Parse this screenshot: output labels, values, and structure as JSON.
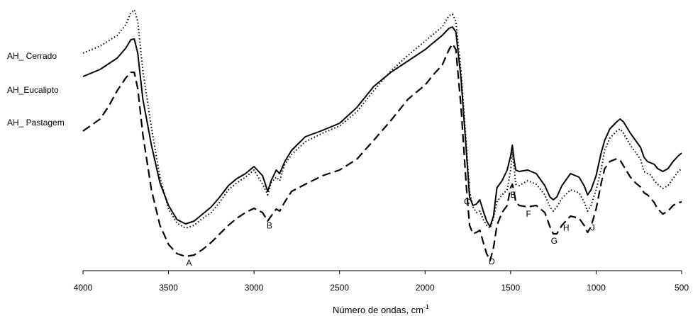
{
  "chart_data": {
    "type": "line",
    "title": "",
    "xlabel": "Número de ondas, cm",
    "xlabel_superscript": "-1",
    "ylabel": "",
    "xlim": [
      4000,
      500
    ],
    "x_ticks": [
      4000,
      3500,
      3000,
      2500,
      2000,
      1500,
      1000,
      500
    ],
    "grid": false,
    "legend": "inline-left",
    "series": [
      {
        "name": "AH_ Cerrado",
        "style": "dotted",
        "color": "#000000",
        "points": [
          [
            4000,
            75
          ],
          [
            3900,
            65
          ],
          [
            3800,
            50
          ],
          [
            3750,
            35
          ],
          [
            3720,
            18
          ],
          [
            3700,
            14
          ],
          [
            3680,
            30
          ],
          [
            3650,
            100
          ],
          [
            3600,
            180
          ],
          [
            3550,
            250
          ],
          [
            3500,
            295
          ],
          [
            3450,
            315
          ],
          [
            3400,
            322
          ],
          [
            3350,
            318
          ],
          [
            3300,
            308
          ],
          [
            3250,
            300
          ],
          [
            3200,
            285
          ],
          [
            3150,
            268
          ],
          [
            3100,
            258
          ],
          [
            3050,
            250
          ],
          [
            3000,
            240
          ],
          [
            2950,
            260
          ],
          [
            2920,
            275
          ],
          [
            2900,
            258
          ],
          [
            2870,
            250
          ],
          [
            2850,
            255
          ],
          [
            2820,
            232
          ],
          [
            2780,
            218
          ],
          [
            2700,
            200
          ],
          [
            2600,
            188
          ],
          [
            2500,
            178
          ],
          [
            2400,
            158
          ],
          [
            2300,
            128
          ],
          [
            2200,
            100
          ],
          [
            2100,
            78
          ],
          [
            2000,
            58
          ],
          [
            1950,
            48
          ],
          [
            1900,
            38
          ],
          [
            1860,
            22
          ],
          [
            1840,
            20
          ],
          [
            1820,
            30
          ],
          [
            1790,
            100
          ],
          [
            1760,
            200
          ],
          [
            1740,
            270
          ],
          [
            1720,
            292
          ],
          [
            1700,
            300
          ],
          [
            1680,
            298
          ],
          [
            1660,
            310
          ],
          [
            1640,
            318
          ],
          [
            1620,
            322
          ],
          [
            1600,
            308
          ],
          [
            1580,
            285
          ],
          [
            1550,
            275
          ],
          [
            1520,
            268
          ],
          [
            1500,
            240
          ],
          [
            1490,
            215
          ],
          [
            1480,
            235
          ],
          [
            1470,
            260
          ],
          [
            1450,
            262
          ],
          [
            1400,
            255
          ],
          [
            1350,
            260
          ],
          [
            1300,
            275
          ],
          [
            1270,
            292
          ],
          [
            1250,
            298
          ],
          [
            1230,
            292
          ],
          [
            1200,
            280
          ],
          [
            1150,
            268
          ],
          [
            1100,
            272
          ],
          [
            1070,
            285
          ],
          [
            1050,
            298
          ],
          [
            1030,
            290
          ],
          [
            1000,
            268
          ],
          [
            970,
            238
          ],
          [
            950,
            212
          ],
          [
            920,
            195
          ],
          [
            880,
            185
          ],
          [
            860,
            182
          ],
          [
            840,
            188
          ],
          [
            800,
            205
          ],
          [
            770,
            215
          ],
          [
            740,
            225
          ],
          [
            720,
            242
          ],
          [
            700,
            245
          ],
          [
            680,
            247
          ],
          [
            660,
            255
          ],
          [
            640,
            260
          ],
          [
            610,
            266
          ],
          [
            580,
            262
          ],
          [
            550,
            252
          ],
          [
            520,
            242
          ],
          [
            500,
            238
          ]
        ]
      },
      {
        "name": "AH_Eucalipto",
        "style": "solid",
        "color": "#000000",
        "points": [
          [
            4000,
            108
          ],
          [
            3900,
            98
          ],
          [
            3800,
            82
          ],
          [
            3750,
            68
          ],
          [
            3720,
            56
          ],
          [
            3700,
            55
          ],
          [
            3680,
            75
          ],
          [
            3650,
            140
          ],
          [
            3600,
            205
          ],
          [
            3550,
            258
          ],
          [
            3500,
            290
          ],
          [
            3450,
            310
          ],
          [
            3400,
            316
          ],
          [
            3350,
            312
          ],
          [
            3300,
            302
          ],
          [
            3250,
            292
          ],
          [
            3200,
            278
          ],
          [
            3150,
            262
          ],
          [
            3100,
            252
          ],
          [
            3050,
            245
          ],
          [
            3000,
            235
          ],
          [
            2950,
            248
          ],
          [
            2920,
            270
          ],
          [
            2900,
            255
          ],
          [
            2870,
            240
          ],
          [
            2850,
            245
          ],
          [
            2820,
            228
          ],
          [
            2780,
            212
          ],
          [
            2700,
            193
          ],
          [
            2600,
            184
          ],
          [
            2500,
            174
          ],
          [
            2400,
            152
          ],
          [
            2300,
            122
          ],
          [
            2200,
            102
          ],
          [
            2100,
            86
          ],
          [
            2000,
            70
          ],
          [
            1950,
            60
          ],
          [
            1900,
            50
          ],
          [
            1860,
            40
          ],
          [
            1840,
            38
          ],
          [
            1820,
            45
          ],
          [
            1790,
            110
          ],
          [
            1760,
            210
          ],
          [
            1740,
            278
          ],
          [
            1720,
            290
          ],
          [
            1700,
            288
          ],
          [
            1680,
            282
          ],
          [
            1660,
            298
          ],
          [
            1640,
            312
          ],
          [
            1620,
            320
          ],
          [
            1600,
            305
          ],
          [
            1580,
            265
          ],
          [
            1550,
            255
          ],
          [
            1520,
            240
          ],
          [
            1500,
            220
          ],
          [
            1490,
            205
          ],
          [
            1480,
            225
          ],
          [
            1470,
            240
          ],
          [
            1450,
            242
          ],
          [
            1400,
            240
          ],
          [
            1350,
            245
          ],
          [
            1300,
            262
          ],
          [
            1270,
            278
          ],
          [
            1250,
            282
          ],
          [
            1230,
            278
          ],
          [
            1200,
            262
          ],
          [
            1150,
            245
          ],
          [
            1100,
            250
          ],
          [
            1070,
            262
          ],
          [
            1050,
            275
          ],
          [
            1030,
            268
          ],
          [
            1000,
            248
          ],
          [
            970,
            215
          ],
          [
            950,
            198
          ],
          [
            920,
            182
          ],
          [
            880,
            172
          ],
          [
            860,
            168
          ],
          [
            840,
            172
          ],
          [
            800,
            188
          ],
          [
            770,
            198
          ],
          [
            740,
            208
          ],
          [
            720,
            222
          ],
          [
            700,
            228
          ],
          [
            680,
            230
          ],
          [
            660,
            232
          ],
          [
            640,
            238
          ],
          [
            610,
            242
          ],
          [
            580,
            238
          ],
          [
            550,
            228
          ],
          [
            520,
            220
          ],
          [
            500,
            216
          ]
        ]
      },
      {
        "name": "AH_ Pastagem",
        "style": "dashed",
        "color": "#000000",
        "points": [
          [
            4000,
            185
          ],
          [
            3900,
            168
          ],
          [
            3850,
            150
          ],
          [
            3800,
            128
          ],
          [
            3750,
            110
          ],
          [
            3720,
            102
          ],
          [
            3700,
            102
          ],
          [
            3680,
            125
          ],
          [
            3650,
            190
          ],
          [
            3600,
            268
          ],
          [
            3550,
            318
          ],
          [
            3500,
            345
          ],
          [
            3450,
            358
          ],
          [
            3400,
            362
          ],
          [
            3350,
            360
          ],
          [
            3300,
            352
          ],
          [
            3250,
            342
          ],
          [
            3200,
            330
          ],
          [
            3150,
            318
          ],
          [
            3100,
            308
          ],
          [
            3050,
            300
          ],
          [
            3000,
            294
          ],
          [
            2950,
            300
          ],
          [
            2920,
            312
          ],
          [
            2900,
            305
          ],
          [
            2870,
            295
          ],
          [
            2850,
            298
          ],
          [
            2820,
            285
          ],
          [
            2780,
            270
          ],
          [
            2700,
            260
          ],
          [
            2600,
            248
          ],
          [
            2500,
            240
          ],
          [
            2400,
            225
          ],
          [
            2300,
            198
          ],
          [
            2200,
            170
          ],
          [
            2100,
            140
          ],
          [
            2000,
            120
          ],
          [
            1950,
            105
          ],
          [
            1900,
            92
          ],
          [
            1860,
            70
          ],
          [
            1840,
            62
          ],
          [
            1820,
            70
          ],
          [
            1790,
            150
          ],
          [
            1760,
            260
          ],
          [
            1740,
            318
          ],
          [
            1720,
            330
          ],
          [
            1700,
            328
          ],
          [
            1680,
            325
          ],
          [
            1660,
            342
          ],
          [
            1640,
            358
          ],
          [
            1620,
            368
          ],
          [
            1600,
            350
          ],
          [
            1580,
            318
          ],
          [
            1550,
            300
          ],
          [
            1520,
            290
          ],
          [
            1500,
            265
          ],
          [
            1490,
            260
          ],
          [
            1480,
            270
          ],
          [
            1470,
            285
          ],
          [
            1450,
            290
          ],
          [
            1400,
            292
          ],
          [
            1350,
            290
          ],
          [
            1300,
            300
          ],
          [
            1270,
            320
          ],
          [
            1250,
            330
          ],
          [
            1230,
            330
          ],
          [
            1200,
            318
          ],
          [
            1150,
            305
          ],
          [
            1100,
            308
          ],
          [
            1070,
            318
          ],
          [
            1050,
            328
          ],
          [
            1030,
            320
          ],
          [
            1000,
            295
          ],
          [
            970,
            258
          ],
          [
            950,
            238
          ],
          [
            920,
            228
          ],
          [
            880,
            224
          ],
          [
            860,
            226
          ],
          [
            840,
            234
          ],
          [
            800,
            250
          ],
          [
            770,
            258
          ],
          [
            740,
            264
          ],
          [
            720,
            272
          ],
          [
            700,
            275
          ],
          [
            680,
            280
          ],
          [
            660,
            286
          ],
          [
            640,
            295
          ],
          [
            610,
            302
          ],
          [
            580,
            298
          ],
          [
            550,
            290
          ],
          [
            520,
            286
          ],
          [
            500,
            285
          ]
        ]
      }
    ],
    "series_labels": [
      "AH_ Cerrado",
      "AH_Eucalipto",
      "AH_ Pastagem"
    ],
    "annotations": [
      {
        "text": "A",
        "x": 3380
      },
      {
        "text": "B",
        "x": 2910
      },
      {
        "text": "C",
        "x": 1755
      },
      {
        "text": "D",
        "x": 1610
      },
      {
        "text": "E",
        "x": 1485
      },
      {
        "text": "F",
        "x": 1395
      },
      {
        "text": "G",
        "x": 1245
      },
      {
        "text": "H",
        "x": 1175
      },
      {
        "text": "J",
        "x": 1020
      }
    ]
  }
}
